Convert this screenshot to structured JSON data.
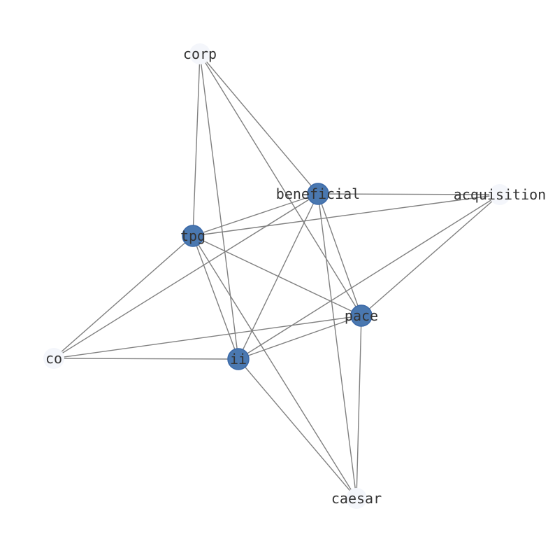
{
  "colors": {
    "highlight_node": "#4a78b0",
    "faint_node": "#f4f6fb",
    "edge": "#808080",
    "label": "#333333"
  },
  "nodes": [
    {
      "id": "corp",
      "label": "corp",
      "highlighted": false
    },
    {
      "id": "beneficial",
      "label": "beneficial",
      "highlighted": true
    },
    {
      "id": "acquisition",
      "label": "acquisition",
      "highlighted": false
    },
    {
      "id": "tpg",
      "label": "tpg",
      "highlighted": true
    },
    {
      "id": "pace",
      "label": "pace",
      "highlighted": true
    },
    {
      "id": "co",
      "label": "co",
      "highlighted": false
    },
    {
      "id": "ii",
      "label": "ii",
      "highlighted": true
    },
    {
      "id": "caesar",
      "label": "caesar",
      "highlighted": false
    }
  ],
  "edges": [
    [
      "corp",
      "tpg"
    ],
    [
      "corp",
      "ii"
    ],
    [
      "corp",
      "beneficial"
    ],
    [
      "corp",
      "pace"
    ],
    [
      "beneficial",
      "acquisition"
    ],
    [
      "beneficial",
      "tpg"
    ],
    [
      "beneficial",
      "co"
    ],
    [
      "beneficial",
      "ii"
    ],
    [
      "beneficial",
      "pace"
    ],
    [
      "beneficial",
      "caesar"
    ],
    [
      "acquisition",
      "tpg"
    ],
    [
      "acquisition",
      "ii"
    ],
    [
      "acquisition",
      "pace"
    ],
    [
      "tpg",
      "co"
    ],
    [
      "tpg",
      "ii"
    ],
    [
      "tpg",
      "pace"
    ],
    [
      "tpg",
      "caesar"
    ],
    [
      "pace",
      "co"
    ],
    [
      "pace",
      "ii"
    ],
    [
      "pace",
      "caesar"
    ],
    [
      "co",
      "ii"
    ],
    [
      "ii",
      "caesar"
    ]
  ]
}
